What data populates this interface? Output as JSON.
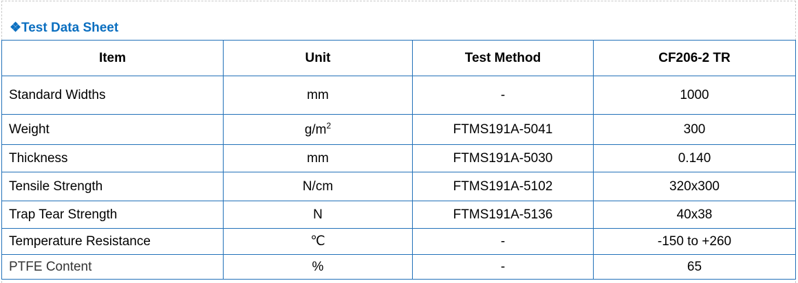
{
  "title_icon": "diamond-cluster-icon",
  "title": "Test Data Sheet",
  "accent_color": "#0b6fc0",
  "columns": [
    "Item",
    "Unit",
    "Test Method",
    "CF206-2 TR"
  ],
  "rows": [
    {
      "item": "Standard Widths",
      "unit": "mm",
      "method": "-",
      "value": "1000"
    },
    {
      "item": "Weight",
      "unit": "g/m",
      "unit_sup": "2",
      "method": "FTMS191A-5041",
      "value": "300"
    },
    {
      "item": "Thickness",
      "unit": "mm",
      "method": "FTMS191A-5030",
      "value": "0.140"
    },
    {
      "item": "Tensile Strength",
      "unit": "N/cm",
      "method": "FTMS191A-5102",
      "value": "320x300"
    },
    {
      "item": "Trap Tear Strength",
      "unit": "N",
      "method": "FTMS191A-5136",
      "value": "40x38"
    },
    {
      "item": "Temperature Resistance",
      "unit": "℃",
      "method": "-",
      "value": "-150 to +260"
    },
    {
      "item": "PTFE Content",
      "unit": "%",
      "method": "-",
      "value": "65"
    }
  ]
}
